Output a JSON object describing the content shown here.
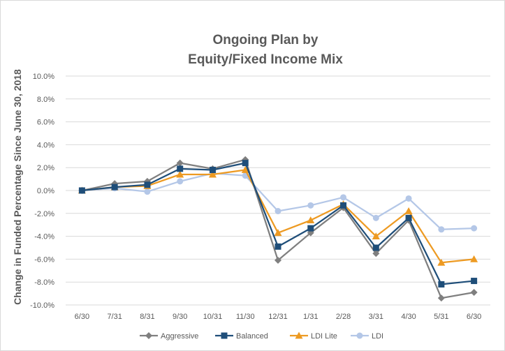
{
  "chart_data": {
    "type": "line",
    "title_line1": "Ongoing Plan by",
    "title_line2": "Equity/Fixed Income Mix",
    "xlabel": "",
    "ylabel": "Change in Funded Percentage Since June 30, 2018",
    "categories": [
      "6/30",
      "7/31",
      "8/31",
      "9/30",
      "10/31",
      "11/30",
      "12/31",
      "1/31",
      "2/28",
      "3/31",
      "4/30",
      "5/31",
      "6/30"
    ],
    "ylim": [
      -10,
      10
    ],
    "yticks": [
      10,
      8,
      6,
      4,
      2,
      0,
      -2,
      -4,
      -6,
      -8,
      -10
    ],
    "ytick_labels": [
      "10.0%",
      "8.0%",
      "6.0%",
      "4.0%",
      "2.0%",
      "0.0%",
      "-2.0%",
      "-4.0%",
      "-6.0%",
      "-8.0%",
      "-10.0%"
    ],
    "grid": true,
    "legend_position": "bottom",
    "series": [
      {
        "name": "Aggressive",
        "color": "#7f7f7f",
        "marker": "diamond",
        "values": [
          0.0,
          0.6,
          0.8,
          2.4,
          1.9,
          2.7,
          -6.1,
          -3.7,
          -1.5,
          -5.5,
          -2.6,
          -9.4,
          -8.9
        ]
      },
      {
        "name": "Balanced",
        "color": "#1f4e79",
        "marker": "square",
        "values": [
          0.0,
          0.3,
          0.5,
          1.9,
          1.8,
          2.4,
          -4.9,
          -3.3,
          -1.3,
          -5.0,
          -2.4,
          -8.2,
          -7.9
        ]
      },
      {
        "name": "LDI Lite",
        "color": "#ed9a22",
        "marker": "triangle",
        "values": [
          0.0,
          0.3,
          0.4,
          1.4,
          1.4,
          1.8,
          -3.7,
          -2.6,
          -1.2,
          -4.0,
          -1.8,
          -6.3,
          -6.0
        ]
      },
      {
        "name": "LDI",
        "color": "#b4c7e7",
        "marker": "circle",
        "values": [
          0.0,
          0.2,
          -0.1,
          0.8,
          1.5,
          1.3,
          -1.8,
          -1.3,
          -0.6,
          -2.4,
          -0.7,
          -3.4,
          -3.3
        ]
      }
    ]
  }
}
